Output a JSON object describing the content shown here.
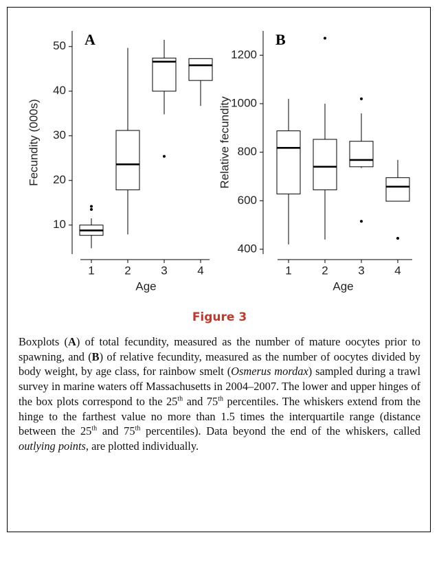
{
  "chart_data": [
    {
      "type": "box",
      "panel_label": "A",
      "y_label": "Fecundity (000s)",
      "x_label": "Age",
      "categories": [
        "1",
        "2",
        "3",
        "4"
      ],
      "boxes": [
        {
          "low": 4.8,
          "q1": 7.7,
          "median": 8.8,
          "q3": 10,
          "high": 11.5,
          "outliers": [
            13.5,
            14.2
          ]
        },
        {
          "low": 7.9,
          "q1": 17.9,
          "median": 23.6,
          "q3": 31.2,
          "high": 49.7,
          "outliers": []
        },
        {
          "low": 34.8,
          "q1": 40,
          "median": 46.6,
          "q3": 47.4,
          "high": 51.5,
          "outliers": [
            25.4
          ]
        },
        {
          "low": 36.7,
          "q1": 42.4,
          "median": 45.8,
          "q3": 47.3,
          "high": 47.3,
          "outliers": []
        }
      ],
      "ylim": [
        3.5,
        53.5
      ],
      "yticks": [
        10,
        20,
        30,
        40,
        50
      ],
      "color": "#000000"
    },
    {
      "type": "box",
      "panel_label": "B",
      "y_label": "Relative fecundity",
      "x_label": "Age",
      "categories": [
        "1",
        "2",
        "3",
        "4"
      ],
      "boxes": [
        {
          "low": 420,
          "q1": 628,
          "median": 818,
          "q3": 888,
          "high": 1020,
          "outliers": []
        },
        {
          "low": 440,
          "q1": 645,
          "median": 740,
          "q3": 853,
          "high": 1000,
          "outliers": [
            1270
          ]
        },
        {
          "low": 735,
          "q1": 740,
          "median": 768,
          "q3": 845,
          "high": 960,
          "outliers": [
            1020,
            515
          ]
        },
        {
          "low": 598,
          "q1": 598,
          "median": 658,
          "q3": 695,
          "high": 768,
          "outliers": [
            445
          ]
        }
      ],
      "ylim": [
        380,
        1300
      ],
      "yticks": [
        400,
        600,
        800,
        1000,
        1200
      ],
      "color": "#000000"
    }
  ],
  "figure_label": "Figure 3",
  "caption": [
    "Boxplots (",
    "A",
    ") of total fecundity, measured as the number of mature oocytes prior to spawning, and (",
    "B",
    ") of relative fecundity, measured as the number of oocytes divided by body weight, by age class, for rainbow smelt (",
    "Osmerus mordax",
    ") sampled during a trawl survey in marine waters off Massachusetts in 2004–2007. The lower and upper hinges of the box plots correspond to the 25",
    "th",
    " and 75",
    "th",
    " percentiles. The whiskers extend from the hinge to the farthest value no more than 1.5 times the interquartile range (distance between the 25",
    "th",
    " and 75",
    "th",
    " percentiles). Data beyond the end of the whiskers, called ",
    "outlying points",
    ", are plotted individually."
  ]
}
